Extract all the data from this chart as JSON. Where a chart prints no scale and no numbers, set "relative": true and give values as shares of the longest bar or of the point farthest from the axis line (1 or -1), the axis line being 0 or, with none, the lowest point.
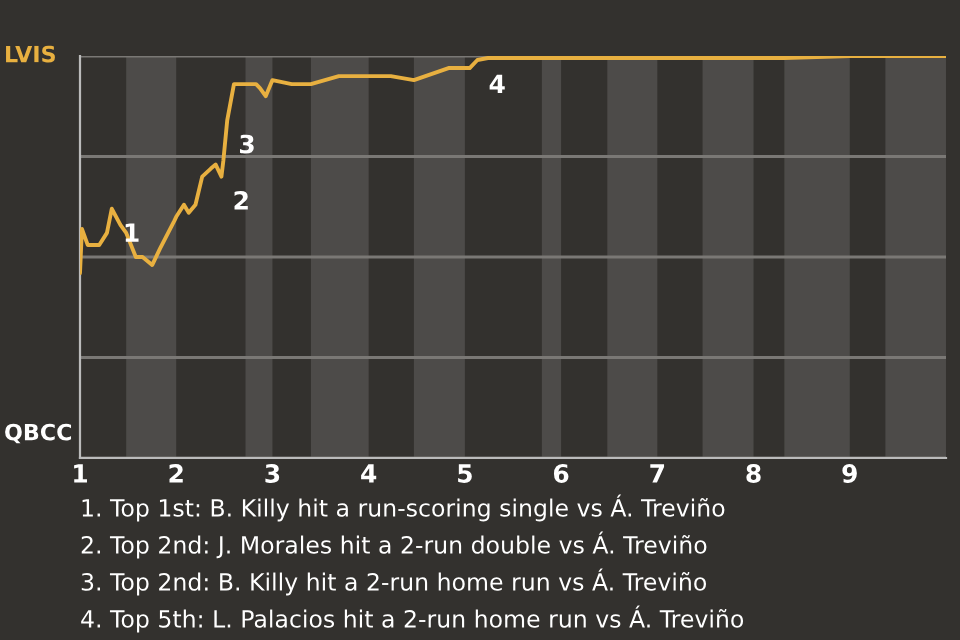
{
  "chart_data": {
    "type": "line",
    "relative": true,
    "x": [
      1.0,
      1.02,
      1.08,
      1.2,
      1.28,
      1.33,
      1.42,
      1.48,
      1.58,
      1.65,
      1.75,
      1.83,
      1.98,
      2.0,
      2.08,
      2.13,
      2.2,
      2.27,
      2.36,
      2.41,
      2.47,
      2.49,
      2.53,
      2.6,
      2.72,
      2.83,
      2.87,
      2.93,
      3.0,
      3.2,
      3.4,
      3.69,
      4.0,
      4.23,
      4.47,
      4.83,
      5.0,
      5.05,
      5.13,
      5.24,
      5.38,
      5.8,
      6.0,
      6.48,
      7.0,
      7.47,
      8.0,
      8.32,
      9.0,
      9.37,
      10.0
    ],
    "series": [
      {
        "color": "#e8b040",
        "values": [
          0.46,
          0.57,
          0.53,
          0.53,
          0.56,
          0.62,
          0.58,
          0.56,
          0.5,
          0.5,
          0.48,
          0.52,
          0.59,
          0.6,
          0.63,
          0.61,
          0.63,
          0.7,
          0.72,
          0.73,
          0.7,
          0.74,
          0.84,
          0.93,
          0.93,
          0.93,
          0.92,
          0.9,
          0.94,
          0.93,
          0.93,
          0.95,
          0.95,
          0.95,
          0.94,
          0.97,
          0.97,
          0.97,
          0.99,
          0.995,
          0.995,
          0.995,
          0.995,
          0.995,
          0.995,
          0.995,
          0.995,
          0.995,
          1,
          1,
          1
        ]
      }
    ],
    "xlim": [
      1,
      10
    ],
    "xticks": [
      1,
      2,
      3,
      4,
      5,
      6,
      7,
      8,
      9
    ],
    "grid": "y",
    "bands": [
      {
        "axis": "x",
        "from": 1.48,
        "to": 2,
        "color": "#4d4b49"
      },
      {
        "axis": "x",
        "from": 2.72,
        "to": 3,
        "color": "#4d4b49"
      },
      {
        "axis": "x",
        "from": 3.4,
        "to": 4,
        "color": "#4d4b49"
      },
      {
        "axis": "x",
        "from": 4.47,
        "to": 5,
        "color": "#4d4b49"
      },
      {
        "axis": "x",
        "from": 5.8,
        "to": 6,
        "color": "#4d4b49"
      },
      {
        "axis": "x",
        "from": 6.48,
        "to": 7,
        "color": "#4d4b49"
      },
      {
        "axis": "x",
        "from": 7.47,
        "to": 8,
        "color": "#4d4b49"
      },
      {
        "axis": "x",
        "from": 8.32,
        "to": 9,
        "color": "#4d4b49"
      },
      {
        "axis": "x",
        "from": 9.37,
        "to": 10,
        "color": "#4d4b49"
      }
    ],
    "annotations": [
      {
        "text": "1",
        "x": 1.33,
        "y": 0.62
      },
      {
        "text": "2",
        "x": 2.47,
        "y": 0.7
      },
      {
        "text": "3",
        "x": 2.53,
        "y": 0.84
      },
      {
        "text": "4",
        "x": 5.13,
        "y": 0.99
      },
      "LVIS",
      "QBCC",
      "1. Top 1st: B. Killy hit a run-scoring single vs Á. Treviño",
      "2. Top 2nd: J. Morales hit a 2-run double vs Á. Treviño",
      "3. Top 2nd: B. Killy hit a 2-run home run vs Á. Treviño",
      "4. Top 5th: L. Palacios hit a 2-run home run vs Á. Treviño"
    ]
  }
}
